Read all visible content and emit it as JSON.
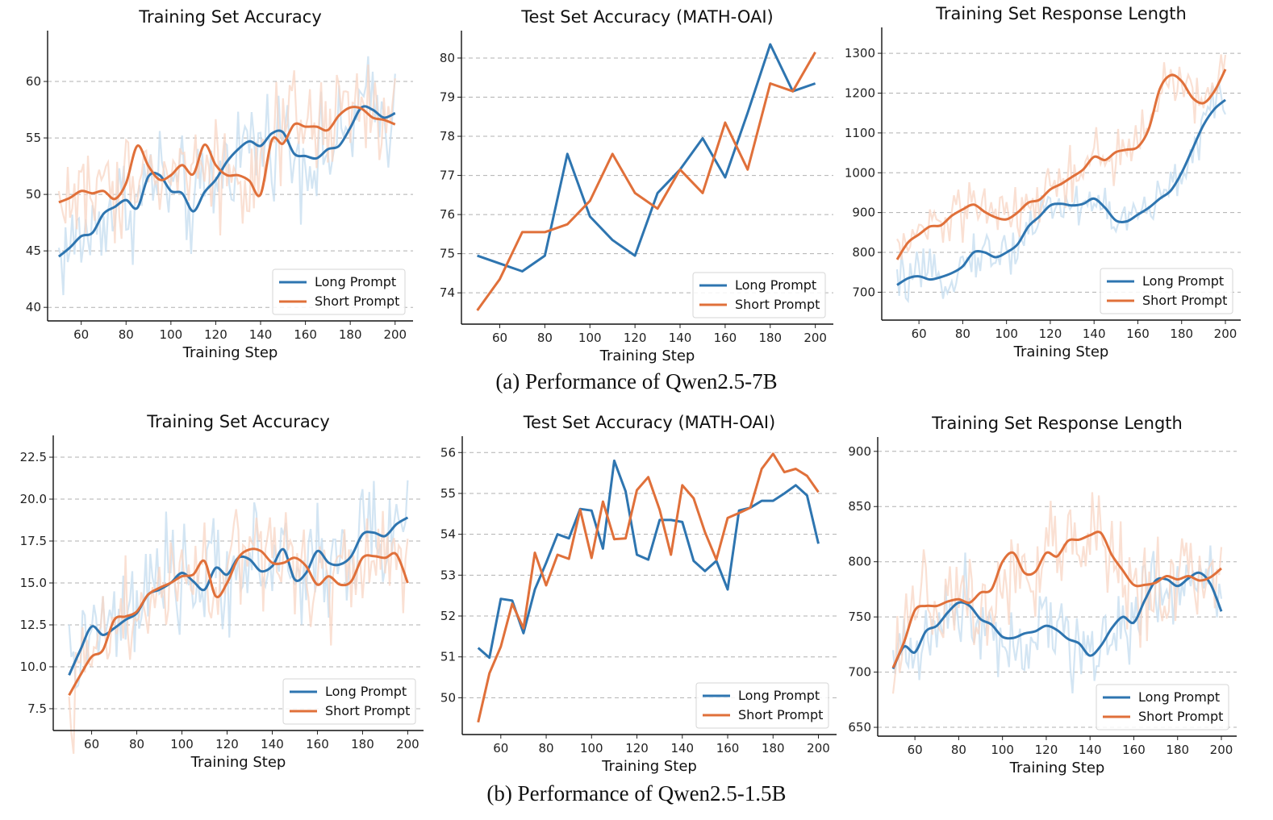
{
  "colors": {
    "long": "#2e75b0",
    "short": "#e0703a",
    "long_raw": "#c4dcef",
    "short_raw": "#f8d6c4",
    "grid": "#b0b0b0"
  },
  "captions": {
    "a": "(a) Performance of Qwen2.5-7B",
    "b": "(b) Performance of Qwen2.5-1.5B"
  },
  "chart_data": [
    {
      "id": "a-train-acc",
      "type": "line",
      "title": "Training Set Accuracy",
      "xlabel": "Training Step",
      "ylabel": "",
      "xlim": [
        45,
        208
      ],
      "ylim": [
        38.8,
        64.5
      ],
      "xticks": [
        60,
        80,
        100,
        120,
        140,
        160,
        180,
        200
      ],
      "yticks": [
        40,
        45,
        50,
        55,
        60
      ],
      "ytick_labels": [
        "40",
        "45",
        "50",
        "55",
        "60"
      ],
      "grid": "horizontal-dashed",
      "legend": "lower-right",
      "x": [
        50,
        55,
        60,
        65,
        70,
        75,
        80,
        85,
        90,
        95,
        100,
        105,
        110,
        115,
        120,
        125,
        130,
        135,
        140,
        145,
        150,
        155,
        160,
        165,
        170,
        175,
        180,
        185,
        190,
        195,
        200
      ],
      "series": [
        {
          "name": "Long Prompt",
          "key": "long",
          "raw_noise_amplitude": 3.5,
          "values": [
            44.5,
            45.3,
            46.3,
            46.6,
            48.3,
            48.9,
            49.5,
            48.8,
            51.6,
            51.7,
            50.3,
            50.1,
            48.5,
            50.2,
            51.3,
            52.9,
            54.0,
            54.7,
            54.3,
            55.4,
            55.5,
            53.6,
            53.4,
            53.2,
            54.0,
            54.3,
            55.9,
            57.7,
            57.5,
            56.8,
            57.2
          ]
        },
        {
          "name": "Short Prompt",
          "key": "short",
          "raw_noise_amplitude": 3.5,
          "values": [
            49.3,
            49.7,
            50.3,
            50.1,
            50.3,
            49.6,
            51.0,
            54.3,
            52.5,
            51.3,
            51.7,
            52.6,
            51.8,
            54.4,
            52.6,
            51.7,
            51.7,
            51.2,
            50.0,
            54.8,
            54.5,
            56.2,
            56.0,
            56.0,
            55.7,
            57.0,
            57.7,
            57.6,
            56.8,
            56.6,
            56.2
          ]
        }
      ]
    },
    {
      "id": "a-test-acc",
      "type": "line",
      "title": "Test Set Accuracy (MATH-OAI)",
      "xlabel": "Training Step",
      "ylabel": "",
      "xlim": [
        43,
        208
      ],
      "ylim": [
        73.2,
        80.7
      ],
      "xticks": [
        60,
        80,
        100,
        120,
        140,
        160,
        180,
        200
      ],
      "yticks": [
        74,
        75,
        76,
        77,
        78,
        79,
        80
      ],
      "ytick_labels": [
        "74",
        "75",
        "76",
        "77",
        "78",
        "79",
        "80"
      ],
      "grid": "horizontal-dashed",
      "legend": "lower-right",
      "x": [
        50,
        60,
        70,
        80,
        90,
        100,
        110,
        120,
        130,
        140,
        150,
        160,
        170,
        180,
        190,
        200
      ],
      "series": [
        {
          "name": "Long Prompt",
          "key": "long",
          "values": [
            74.95,
            74.75,
            74.55,
            74.95,
            77.55,
            75.95,
            75.35,
            74.95,
            76.55,
            77.15,
            77.95,
            76.95,
            78.6,
            80.35,
            79.15,
            79.35
          ]
        },
        {
          "name": "Short Prompt",
          "key": "short",
          "values": [
            73.55,
            74.35,
            75.55,
            75.55,
            75.75,
            76.35,
            77.55,
            76.55,
            76.15,
            77.15,
            76.55,
            78.35,
            77.15,
            79.35,
            79.15,
            80.15
          ]
        }
      ]
    },
    {
      "id": "a-resp-len",
      "type": "line",
      "title": "Training Set Response Length",
      "xlabel": "Training Step",
      "ylabel": "",
      "xlim": [
        43,
        207
      ],
      "ylim": [
        630,
        1365
      ],
      "xticks": [
        60,
        80,
        100,
        120,
        140,
        160,
        180,
        200
      ],
      "yticks": [
        700,
        800,
        900,
        1000,
        1100,
        1200,
        1300
      ],
      "ytick_labels": [
        "700",
        "800",
        "900",
        "1000",
        "1100",
        "1200",
        "1300"
      ],
      "grid": "horizontal-dashed",
      "legend": "lower-right",
      "x": [
        50,
        55,
        60,
        65,
        70,
        75,
        80,
        85,
        90,
        95,
        100,
        105,
        110,
        115,
        120,
        125,
        130,
        135,
        140,
        145,
        150,
        155,
        160,
        165,
        170,
        175,
        180,
        185,
        190,
        195,
        200
      ],
      "series": [
        {
          "name": "Long Prompt",
          "key": "long",
          "raw_noise_amplitude": 45,
          "values": [
            718,
            735,
            740,
            732,
            738,
            748,
            765,
            800,
            800,
            788,
            800,
            820,
            865,
            890,
            918,
            922,
            918,
            922,
            935,
            912,
            880,
            878,
            895,
            912,
            935,
            955,
            1000,
            1060,
            1120,
            1160,
            1183
          ]
        },
        {
          "name": "Short Prompt",
          "key": "short",
          "raw_noise_amplitude": 55,
          "values": [
            782,
            825,
            845,
            865,
            868,
            892,
            908,
            920,
            902,
            888,
            883,
            900,
            925,
            932,
            958,
            972,
            990,
            1008,
            1040,
            1032,
            1052,
            1058,
            1065,
            1110,
            1210,
            1245,
            1230,
            1188,
            1175,
            1205,
            1260
          ]
        }
      ]
    },
    {
      "id": "b-train-acc",
      "type": "line",
      "title": "Training Set Accuracy",
      "xlabel": "Training Step",
      "ylabel": "",
      "xlim": [
        43,
        207
      ],
      "ylim": [
        6.2,
        23.8
      ],
      "xticks": [
        60,
        80,
        100,
        120,
        140,
        160,
        180,
        200
      ],
      "yticks": [
        7.5,
        10,
        12.5,
        15,
        17.5,
        20,
        22.5
      ],
      "ytick_labels": [
        "7.5",
        "10.0",
        "12.5",
        "15.0",
        "17.5",
        "20.0",
        "22.5"
      ],
      "grid": "horizontal-dashed",
      "legend": "lower-right",
      "x": [
        50,
        55,
        60,
        65,
        70,
        75,
        80,
        85,
        90,
        95,
        100,
        105,
        110,
        115,
        120,
        125,
        130,
        135,
        140,
        145,
        150,
        155,
        160,
        165,
        170,
        175,
        180,
        185,
        190,
        195,
        200
      ],
      "series": [
        {
          "name": "Long Prompt",
          "key": "long",
          "raw_noise_amplitude": 2.5,
          "values": [
            9.5,
            11.0,
            12.4,
            11.9,
            12.3,
            12.8,
            13.2,
            14.3,
            14.6,
            15.0,
            15.6,
            15.1,
            14.6,
            15.9,
            15.5,
            16.5,
            16.4,
            15.7,
            16.0,
            17.0,
            15.2,
            15.6,
            16.9,
            16.2,
            16.1,
            16.6,
            17.9,
            18.0,
            17.8,
            18.5,
            18.9
          ]
        },
        {
          "name": "Short Prompt",
          "key": "short",
          "raw_noise_amplitude": 2.5,
          "values": [
            8.3,
            9.5,
            10.6,
            11.0,
            12.8,
            13.0,
            13.3,
            14.3,
            14.7,
            15.0,
            15.4,
            15.5,
            16.3,
            14.2,
            15.0,
            16.5,
            17.0,
            16.9,
            16.2,
            16.2,
            16.5,
            16.0,
            14.9,
            15.4,
            14.9,
            15.1,
            16.5,
            16.6,
            16.5,
            16.7,
            15.0
          ]
        }
      ]
    },
    {
      "id": "b-test-acc",
      "type": "line",
      "title": "Test Set Accuracy (MATH-OAI)",
      "xlabel": "Training Step",
      "ylabel": "",
      "xlim": [
        43,
        208
      ],
      "ylim": [
        49.1,
        56.4
      ],
      "xticks": [
        60,
        80,
        100,
        120,
        140,
        160,
        180,
        200
      ],
      "yticks": [
        50,
        51,
        52,
        53,
        54,
        55,
        56
      ],
      "ytick_labels": [
        "50",
        "51",
        "52",
        "53",
        "54",
        "55",
        "56"
      ],
      "grid": "horizontal-dashed",
      "legend": "lower-right",
      "x": [
        50,
        55,
        60,
        65,
        70,
        75,
        80,
        85,
        90,
        95,
        100,
        105,
        110,
        115,
        120,
        125,
        130,
        135,
        140,
        145,
        150,
        155,
        160,
        165,
        170,
        175,
        180,
        185,
        190,
        195,
        200
      ],
      "series": [
        {
          "name": "Long Prompt",
          "key": "long",
          "values": [
            51.22,
            50.98,
            52.42,
            52.38,
            51.58,
            52.65,
            53.3,
            54.0,
            53.9,
            54.62,
            54.58,
            53.65,
            55.8,
            55.05,
            53.5,
            53.38,
            54.35,
            54.35,
            54.3,
            53.35,
            53.1,
            53.35,
            52.65,
            54.58,
            54.65,
            54.82,
            54.82,
            55.0,
            55.2,
            54.95,
            53.77
          ]
        },
        {
          "name": "Short Prompt",
          "key": "short",
          "values": [
            49.4,
            50.6,
            51.25,
            52.3,
            51.7,
            53.55,
            52.75,
            53.5,
            53.4,
            54.6,
            53.42,
            54.8,
            53.88,
            53.9,
            55.08,
            55.4,
            54.6,
            53.5,
            55.2,
            54.88,
            54.05,
            53.38,
            54.4,
            54.52,
            54.65,
            55.6,
            55.97,
            55.52,
            55.6,
            55.43,
            55.03
          ]
        }
      ]
    },
    {
      "id": "b-resp-len",
      "type": "line",
      "title": "Training Set Response Length",
      "xlabel": "Training Step",
      "ylabel": "",
      "xlim": [
        43,
        207
      ],
      "ylim": [
        642,
        913
      ],
      "xticks": [
        60,
        80,
        100,
        120,
        140,
        160,
        180,
        200
      ],
      "yticks": [
        650,
        700,
        750,
        800,
        850,
        900
      ],
      "ytick_labels": [
        "650",
        "700",
        "750",
        "800",
        "850",
        "900"
      ],
      "grid": "horizontal-dashed",
      "legend": "lower-right",
      "x": [
        50,
        55,
        60,
        65,
        70,
        75,
        80,
        85,
        90,
        95,
        100,
        105,
        110,
        115,
        120,
        125,
        130,
        135,
        140,
        145,
        150,
        155,
        160,
        165,
        170,
        175,
        180,
        185,
        190,
        195,
        200
      ],
      "series": [
        {
          "name": "Long Prompt",
          "key": "long",
          "raw_noise_amplitude": 30,
          "values": [
            703,
            723,
            718,
            737,
            742,
            754,
            763,
            760,
            748,
            743,
            732,
            731,
            735,
            737,
            742,
            738,
            730,
            726,
            715,
            724,
            740,
            750,
            745,
            765,
            783,
            784,
            778,
            785,
            790,
            780,
            755
          ]
        },
        {
          "name": "Short Prompt",
          "key": "short",
          "raw_noise_amplitude": 35,
          "values": [
            704,
            727,
            756,
            760,
            760,
            764,
            766,
            763,
            772,
            775,
            800,
            808,
            790,
            791,
            808,
            805,
            819,
            820,
            824,
            826,
            806,
            792,
            779,
            779,
            781,
            787,
            784,
            787,
            783,
            786,
            794
          ]
        }
      ]
    }
  ]
}
